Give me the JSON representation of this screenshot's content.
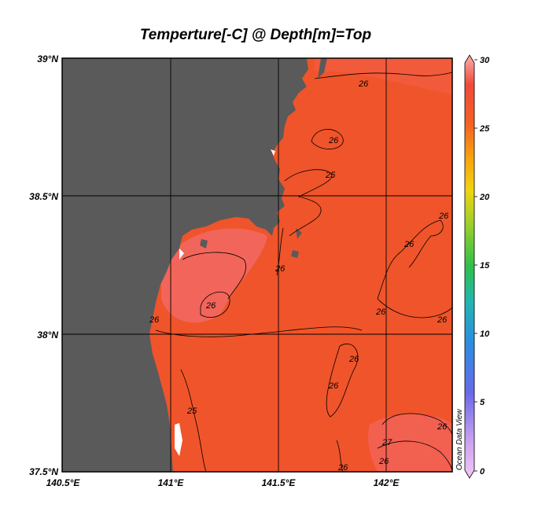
{
  "title": "Temperture[-C] @ Depth[m]=Top",
  "watermark": "Ocean Data View",
  "axes": {
    "lon_ticks": [
      "140.5°E",
      "141°E",
      "141.5°E",
      "142°E"
    ],
    "lat_ticks": [
      "39°N",
      "38.5°N",
      "38°N",
      "37.5°N"
    ]
  },
  "colorbar": {
    "ticks": [
      "30",
      "25",
      "20",
      "15",
      "10",
      "5",
      "0"
    ],
    "range": [
      0,
      30
    ],
    "gradient": [
      "#f5c6f5",
      "#c9a0f0",
      "#6a6ae8",
      "#2a8ee0",
      "#22b6b0",
      "#2ec04a",
      "#9ad02a",
      "#f0d410",
      "#f8a010",
      "#f46024",
      "#f04a3a",
      "#f8b0a8"
    ]
  },
  "contour_labels": [
    "26",
    "26",
    "25",
    "26",
    "26",
    "26",
    "26",
    "26",
    "26",
    "26",
    "25",
    "26",
    "26",
    "27",
    "26",
    "26",
    "26"
  ],
  "colors": {
    "land": "#5a5a5a",
    "ocean": "#f0542a",
    "warm_patch": "#f2655a"
  }
}
